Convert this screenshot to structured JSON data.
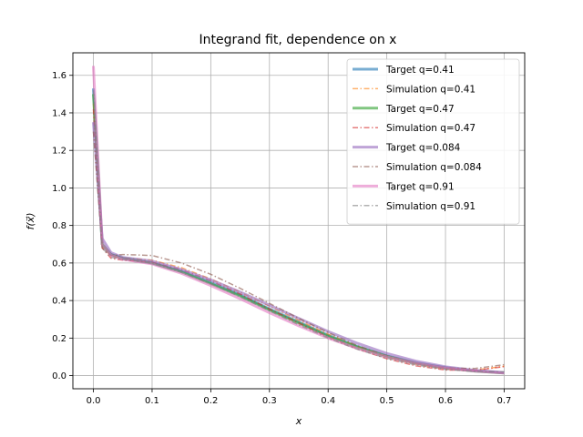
{
  "chart_data": {
    "type": "line",
    "title": "Integrand fit, dependence on x",
    "xlabel": "x",
    "ylabel": "f(x⃗)",
    "xlim": [
      -0.035,
      0.735
    ],
    "ylim": [
      -0.07,
      1.72
    ],
    "xticks": [
      0.0,
      0.1,
      0.2,
      0.3,
      0.4,
      0.5,
      0.6,
      0.7
    ],
    "yticks": [
      0.0,
      0.2,
      0.4,
      0.6,
      0.8,
      1.0,
      1.2,
      1.4,
      1.6
    ],
    "xtick_labels": [
      "0.0",
      "0.1",
      "0.2",
      "0.3",
      "0.4",
      "0.5",
      "0.6",
      "0.7"
    ],
    "ytick_labels": [
      "0.0",
      "0.2",
      "0.4",
      "0.6",
      "0.8",
      "1.0",
      "1.2",
      "1.4",
      "1.6"
    ],
    "grid": true,
    "legend_position": "top-right",
    "series": [
      {
        "name": "Target q=0.41",
        "style": "solid",
        "color": "#1f77b4",
        "x": [
          0.0,
          0.015,
          0.03,
          0.05,
          0.1,
          0.15,
          0.2,
          0.25,
          0.3,
          0.35,
          0.4,
          0.45,
          0.5,
          0.55,
          0.6,
          0.65,
          0.7
        ],
        "y": [
          1.53,
          0.7,
          0.645,
          0.625,
          0.6,
          0.555,
          0.495,
          0.43,
          0.355,
          0.285,
          0.215,
          0.155,
          0.105,
          0.068,
          0.042,
          0.025,
          0.015
        ]
      },
      {
        "name": "Simulation q=0.41",
        "style": "dashdot",
        "color": "#ff7f0e",
        "x": [
          0.0,
          0.015,
          0.03,
          0.05,
          0.1,
          0.15,
          0.2,
          0.25,
          0.3,
          0.35,
          0.4,
          0.45,
          0.5,
          0.55,
          0.6,
          0.65,
          0.7
        ],
        "y": [
          1.45,
          0.69,
          0.635,
          0.628,
          0.615,
          0.575,
          0.515,
          0.445,
          0.37,
          0.295,
          0.22,
          0.155,
          0.1,
          0.06,
          0.035,
          0.03,
          0.05
        ]
      },
      {
        "name": "Target q=0.47",
        "style": "solid",
        "color": "#2ca02c",
        "x": [
          0.0,
          0.015,
          0.03,
          0.05,
          0.1,
          0.15,
          0.2,
          0.25,
          0.3,
          0.35,
          0.4,
          0.45,
          0.5,
          0.55,
          0.6,
          0.65,
          0.7
        ],
        "y": [
          1.5,
          0.7,
          0.645,
          0.625,
          0.6,
          0.553,
          0.49,
          0.425,
          0.35,
          0.28,
          0.21,
          0.152,
          0.103,
          0.066,
          0.041,
          0.024,
          0.014
        ]
      },
      {
        "name": "Simulation q=0.47",
        "style": "dashdot",
        "color": "#d62728",
        "x": [
          0.0,
          0.015,
          0.03,
          0.05,
          0.1,
          0.15,
          0.2,
          0.25,
          0.3,
          0.35,
          0.4,
          0.45,
          0.5,
          0.55,
          0.6,
          0.65,
          0.7
        ],
        "y": [
          1.42,
          0.68,
          0.625,
          0.615,
          0.605,
          0.565,
          0.505,
          0.435,
          0.355,
          0.28,
          0.205,
          0.142,
          0.09,
          0.052,
          0.03,
          0.028,
          0.048
        ]
      },
      {
        "name": "Target q=0.084",
        "style": "solid",
        "color": "#9467bd",
        "x": [
          0.0,
          0.015,
          0.03,
          0.05,
          0.1,
          0.15,
          0.2,
          0.25,
          0.3,
          0.35,
          0.4,
          0.45,
          0.5,
          0.55,
          0.6,
          0.65,
          0.7
        ],
        "y": [
          1.35,
          0.73,
          0.655,
          0.63,
          0.61,
          0.565,
          0.51,
          0.445,
          0.375,
          0.305,
          0.235,
          0.172,
          0.118,
          0.077,
          0.047,
          0.028,
          0.016
        ]
      },
      {
        "name": "Simulation q=0.084",
        "style": "dashdot",
        "color": "#8c564b",
        "x": [
          0.0,
          0.015,
          0.03,
          0.05,
          0.1,
          0.15,
          0.2,
          0.25,
          0.3,
          0.35,
          0.4,
          0.45,
          0.5,
          0.55,
          0.6,
          0.65,
          0.7
        ],
        "y": [
          1.3,
          0.68,
          0.64,
          0.645,
          0.64,
          0.6,
          0.54,
          0.465,
          0.385,
          0.305,
          0.23,
          0.16,
          0.105,
          0.065,
          0.04,
          0.038,
          0.058
        ]
      },
      {
        "name": "Target q=0.91",
        "style": "solid",
        "color": "#e377c2",
        "x": [
          0.0,
          0.015,
          0.03,
          0.05,
          0.1,
          0.15,
          0.2,
          0.25,
          0.3,
          0.35,
          0.4,
          0.45,
          0.5,
          0.55,
          0.6,
          0.65,
          0.7
        ],
        "y": [
          1.65,
          0.7,
          0.64,
          0.62,
          0.595,
          0.545,
          0.48,
          0.41,
          0.335,
          0.265,
          0.2,
          0.145,
          0.1,
          0.065,
          0.04,
          0.024,
          0.014
        ]
      },
      {
        "name": "Simulation q=0.91",
        "style": "dashdot",
        "color": "#7f7f7f",
        "x": [
          0.0,
          0.015,
          0.03,
          0.05,
          0.1,
          0.15,
          0.2,
          0.25,
          0.3,
          0.35,
          0.4,
          0.45,
          0.5,
          0.55,
          0.6,
          0.65,
          0.7
        ],
        "y": [
          1.52,
          0.68,
          0.63,
          0.62,
          0.6,
          0.55,
          0.49,
          0.42,
          0.345,
          0.27,
          0.2,
          0.14,
          0.092,
          0.056,
          0.033,
          0.022,
          0.02
        ]
      }
    ]
  }
}
